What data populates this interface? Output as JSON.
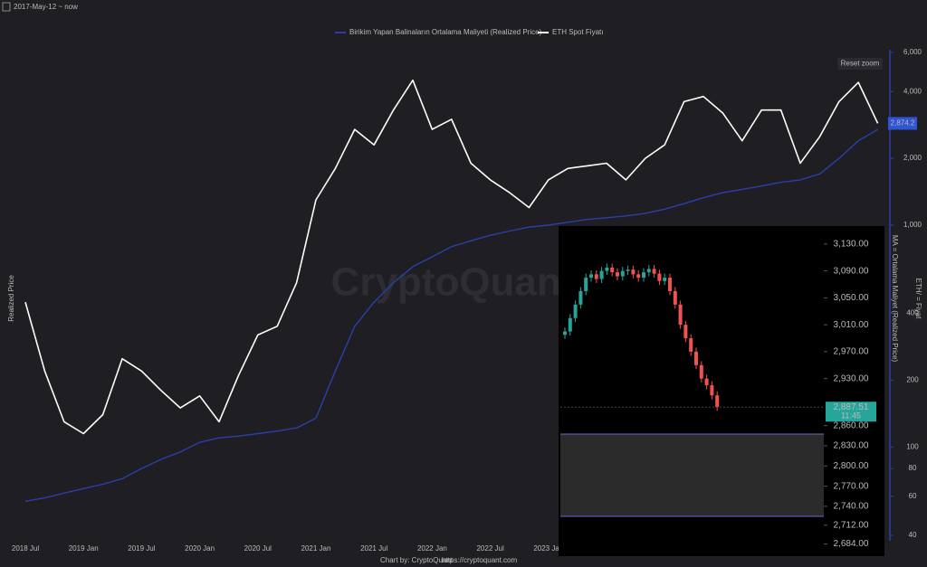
{
  "chart_data": [
    {
      "type": "line",
      "range_label": "2017-May-12 ~ now",
      "reset_button": "Reset zoom",
      "watermark": "CryptoQuant",
      "footer": "Chart by: CryptoQuant",
      "footer_link": "https://cryptoquant.com",
      "ylabel": "Realized Price",
      "y2label": "MA = Ortalama Maliyet (Realized Price)",
      "y3label": "ETH/ = Fiyat",
      "log_y": true,
      "categories": [
        "2018 Jul",
        null,
        null,
        "2019 Jan",
        null,
        null,
        "2019 Jul",
        null,
        null,
        "2020 Jan",
        null,
        null,
        "2020 Jul",
        null,
        null,
        "2021 Jan",
        null,
        null,
        "2021 Jul",
        null,
        null,
        "2022 Jan",
        null,
        null,
        "2022 Jul",
        null,
        null,
        "2023 Jan",
        null,
        null,
        null,
        null,
        null,
        null,
        null,
        null,
        null,
        null,
        null,
        null,
        null,
        null,
        null,
        null,
        null
      ],
      "series": [
        {
          "name": "Birikim Yapan Balinaların Ortalama Maliyeti (Realized Price)",
          "color": "#2a3fa8",
          "values": [
            57,
            59,
            62,
            65,
            68,
            72,
            80,
            88,
            95,
            105,
            110,
            112,
            115,
            118,
            122,
            135,
            220,
            350,
            450,
            550,
            650,
            720,
            800,
            850,
            900,
            940,
            980,
            1000,
            1030,
            1060,
            1080,
            1100,
            1130,
            1180,
            1250,
            1330,
            1400,
            1450,
            1500,
            1560,
            1600,
            1700,
            2000,
            2400,
            2700
          ]
        },
        {
          "name": "ETH Spot Fiyatı",
          "color": "#ffffff",
          "values": [
            450,
            220,
            130,
            115,
            140,
            250,
            220,
            180,
            150,
            170,
            130,
            210,
            320,
            350,
            550,
            1300,
            1800,
            2700,
            2300,
            3300,
            4500,
            2700,
            3000,
            1900,
            1600,
            1400,
            1200,
            1600,
            1800,
            1850,
            1900,
            1600,
            2000,
            2300,
            3600,
            3800,
            3200,
            2400,
            3300,
            3300,
            1900,
            2500,
            3600,
            4400,
            2874
          ]
        }
      ],
      "current_value": {
        "value": 2874.2,
        "label": "2,874.2"
      },
      "ylim": [
        40,
        6000
      ],
      "yticks": [
        {
          "value": 6000,
          "label": "6,000"
        },
        {
          "value": 4000,
          "label": "4,000"
        },
        {
          "value": 2000,
          "label": "2,000"
        },
        {
          "value": 1000,
          "label": "1,000"
        },
        400,
        200,
        100,
        80,
        60,
        40
      ]
    },
    {
      "type": "candlestick",
      "open": [
        2995,
        3000,
        3020,
        3040,
        3060,
        3080,
        3085,
        3078,
        3090,
        3095,
        3088,
        3082,
        3090,
        3092,
        3085,
        3080,
        3088,
        3093,
        3086,
        3075,
        3080,
        3060,
        3040,
        3010,
        2990,
        2970,
        2950,
        2930,
        2920,
        2905
      ],
      "high": [
        3006,
        3026,
        3046,
        3066,
        3086,
        3091,
        3091,
        3096,
        3101,
        3101,
        3094,
        3096,
        3098,
        3098,
        3091,
        3094,
        3099,
        3099,
        3092,
        3086,
        3086,
        3066,
        3046,
        3016,
        2996,
        2976,
        2956,
        2936,
        2926,
        2911
      ],
      "low": [
        2989,
        2994,
        3014,
        3034,
        3054,
        3074,
        3072,
        3072,
        3084,
        3082,
        3076,
        3076,
        3084,
        3079,
        3074,
        3074,
        3082,
        3080,
        3069,
        3069,
        3054,
        3034,
        3004,
        2984,
        2964,
        2944,
        2924,
        2914,
        2899,
        2882
      ],
      "close": [
        3000,
        3020,
        3040,
        3060,
        3080,
        3085,
        3078,
        3090,
        3095,
        3088,
        3082,
        3090,
        3092,
        3085,
        3080,
        3088,
        3093,
        3086,
        3075,
        3080,
        3060,
        3040,
        3010,
        2990,
        2970,
        2950,
        2930,
        2920,
        2905,
        2887.51
      ],
      "up_color": "#26a69a",
      "down_color": "#ef5350",
      "current_price": {
        "value": 2887.51,
        "label": "2,887.51"
      },
      "current_time": "11:45",
      "ylim": [
        2670,
        3150
      ],
      "yticks": [
        {
          "value": 3130,
          "label": "3,130.00"
        },
        {
          "value": 3090,
          "label": "3,090.00"
        },
        {
          "value": 3050,
          "label": "3,050.00"
        },
        {
          "value": 3010,
          "label": "3,010.00"
        },
        {
          "value": 2970,
          "label": "2,970.00"
        },
        {
          "value": 2930,
          "label": "2,930.00"
        },
        {
          "value": 2860,
          "label": "2,860.00"
        },
        {
          "value": 2830,
          "label": "2,830.00"
        },
        {
          "value": 2800,
          "label": "2,800.00"
        },
        {
          "value": 2770,
          "label": "2,770.00"
        },
        {
          "value": 2740,
          "label": "2,740.00"
        },
        {
          "value": 2712,
          "label": "2,712.00"
        },
        {
          "value": 2684,
          "label": "2,684.00"
        }
      ]
    }
  ]
}
